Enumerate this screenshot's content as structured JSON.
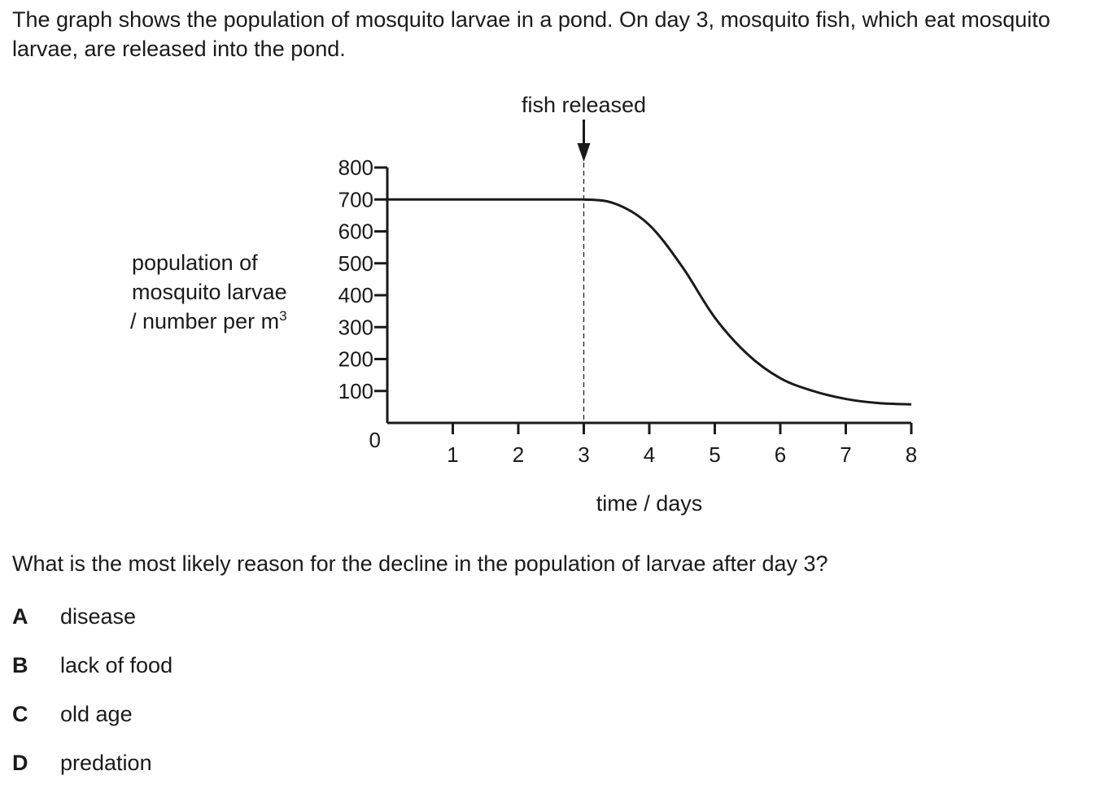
{
  "intro": "The graph shows the population of mosquito larvae in a pond. On day 3, mosquito fish, which eat mosquito larvae, are released into the pond.",
  "question": "What is the most likely reason for the decline in the population of larvae after day 3?",
  "options": [
    {
      "letter": "A",
      "text": "disease"
    },
    {
      "letter": "B",
      "text": "lack of food"
    },
    {
      "letter": "C",
      "text": "old age"
    },
    {
      "letter": "D",
      "text": "predation"
    }
  ],
  "chart_data": {
    "type": "line",
    "xlabel": "time / days",
    "ylabel_lines": [
      "population of",
      "mosquito larvae",
      "/ number per m"
    ],
    "ylabel_superscript": "3",
    "xlim": [
      0,
      8
    ],
    "ylim": [
      0,
      800
    ],
    "x_ticks": [
      1,
      2,
      3,
      4,
      5,
      6,
      7,
      8
    ],
    "y_ticks": [
      100,
      200,
      300,
      400,
      500,
      600,
      700,
      800
    ],
    "origin_label": "0",
    "grid": false,
    "series": [
      {
        "x": [
          0,
          1,
          2,
          3,
          3.5,
          4,
          4.5,
          5,
          5.5,
          6,
          6.5,
          7,
          7.5,
          8
        ],
        "values": [
          700,
          700,
          700,
          700,
          685,
          620,
          490,
          330,
          215,
          140,
          100,
          75,
          62,
          58
        ]
      }
    ],
    "annotation": {
      "text": "fish released",
      "x": 3,
      "marker": "arrow-down",
      "guide_line": "dashed"
    },
    "colors": {
      "line": "#1a1a1a",
      "axis": "#1a1a1a"
    }
  }
}
